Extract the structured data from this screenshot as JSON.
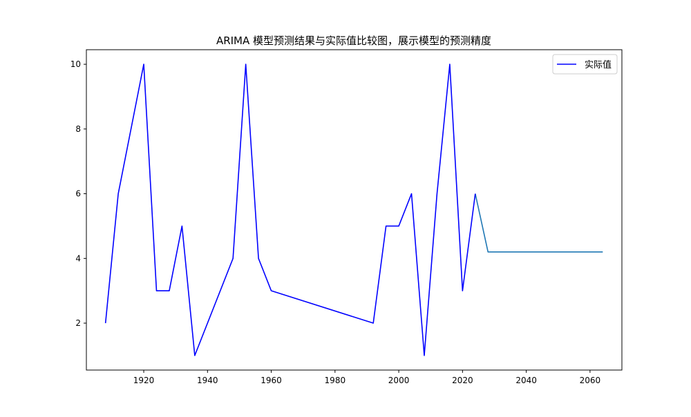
{
  "chart_data": {
    "type": "line",
    "title": "ARIMA 模型预测结果与实际值比较图，展示模型的预测精度",
    "xlabel": "",
    "ylabel": "",
    "xlim": [
      1902,
      2070
    ],
    "ylim": [
      0.55,
      10.45
    ],
    "x_ticks": [
      1920,
      1940,
      1960,
      1980,
      2000,
      2020,
      2040,
      2060
    ],
    "y_ticks": [
      2,
      4,
      6,
      8,
      10
    ],
    "grid": false,
    "legend_position": "top-right",
    "series": [
      {
        "name": "实际值",
        "color": "#0000ff",
        "in_legend": true,
        "x": [
          1908,
          1912,
          1920,
          1924,
          1928,
          1932,
          1936,
          1948,
          1952,
          1956,
          1960,
          1992,
          1996,
          2000,
          2004,
          2008,
          2012,
          2016,
          2020,
          2024
        ],
        "y": [
          2,
          6,
          10,
          3,
          3,
          5,
          1,
          4,
          10,
          4,
          3,
          2,
          5,
          5,
          6,
          1,
          6,
          10,
          3,
          6
        ]
      },
      {
        "name": "",
        "color": "#1f77b4",
        "in_legend": false,
        "x": [
          2024,
          2028,
          2032,
          2036,
          2040,
          2044,
          2048,
          2052,
          2056,
          2060,
          2064
        ],
        "y": [
          6,
          4.2,
          4.2,
          4.2,
          4.2,
          4.2,
          4.2,
          4.2,
          4.2,
          4.2,
          4.2
        ]
      }
    ]
  }
}
